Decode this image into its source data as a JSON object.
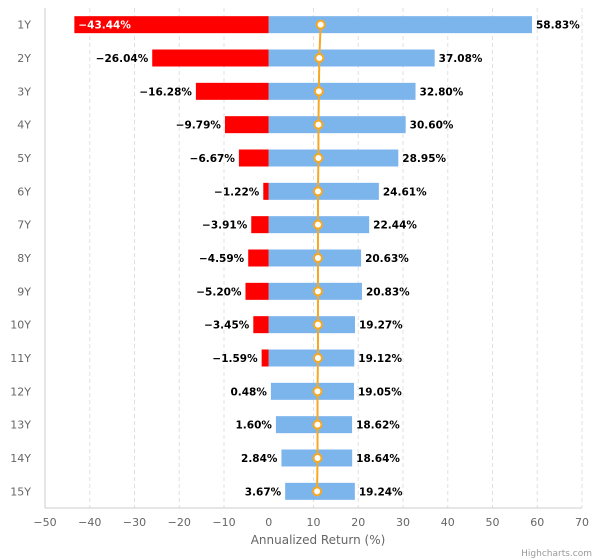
{
  "chart_data": {
    "type": "bar",
    "orientation": "horizontal",
    "categories": [
      "1Y",
      "2Y",
      "3Y",
      "4Y",
      "5Y",
      "6Y",
      "7Y",
      "8Y",
      "9Y",
      "10Y",
      "11Y",
      "12Y",
      "13Y",
      "14Y",
      "15Y"
    ],
    "range_low": [
      -43.44,
      -26.04,
      -16.28,
      -9.79,
      -6.67,
      -1.22,
      -3.91,
      -4.59,
      -5.2,
      -3.45,
      -1.59,
      0.48,
      1.6,
      2.84,
      3.67
    ],
    "range_high": [
      58.83,
      37.08,
      32.8,
      30.6,
      28.95,
      24.61,
      22.44,
      20.63,
      20.83,
      19.27,
      19.12,
      19.05,
      18.62,
      18.64,
      19.24
    ],
    "low_labels": [
      "−43.44%",
      "−26.04%",
      "−16.28%",
      "−9.79%",
      "−6.67%",
      "−1.22%",
      "−3.91%",
      "−4.59%",
      "−5.20%",
      "−3.45%",
      "−1.59%",
      "0.48%",
      "1.60%",
      "2.84%",
      "3.67%"
    ],
    "high_labels": [
      "58.83%",
      "37.08%",
      "32.80%",
      "30.60%",
      "28.95%",
      "24.61%",
      "22.44%",
      "20.63%",
      "20.83%",
      "19.27%",
      "19.12%",
      "19.05%",
      "18.62%",
      "18.64%",
      "19.24%"
    ],
    "line_values": [
      11.6,
      11.3,
      11.2,
      11.1,
      11.1,
      11.0,
      11.0,
      11.0,
      11.0,
      11.0,
      11.0,
      10.9,
      10.9,
      10.9,
      10.8
    ],
    "xlabel": "Annualized Return (%)",
    "xlim": [
      -50,
      70
    ],
    "xticks": [
      -50,
      -40,
      -30,
      -20,
      -10,
      0,
      10,
      20,
      30,
      40,
      50,
      60,
      70
    ],
    "xtick_labels": [
      "−50",
      "−40",
      "−30",
      "−20",
      "−10",
      "0",
      "10",
      "20",
      "30",
      "40",
      "50",
      "60",
      "70"
    ],
    "grid": "vertical-dashed",
    "colors": {
      "negative": "#ff0000",
      "positive": "#7cb5ec",
      "line": "#f7a823",
      "marker_fill": "#ffffff",
      "grid": "#e0e0e0",
      "axis": "#999999"
    },
    "credits": "Highcharts.com"
  }
}
